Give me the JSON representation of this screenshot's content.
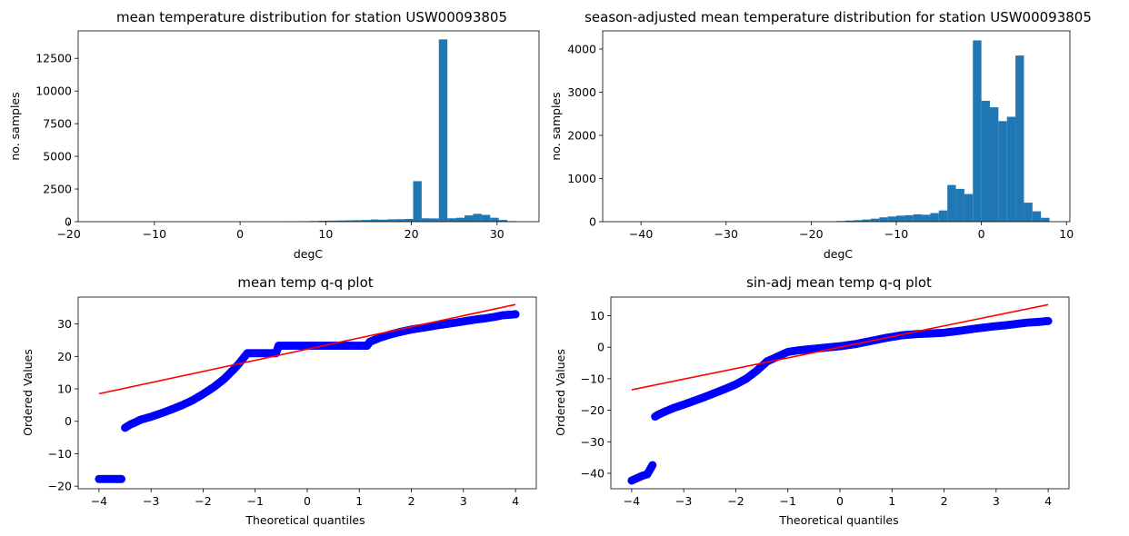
{
  "figure": {
    "background": "#ffffff"
  },
  "chart_data": [
    {
      "type": "bar",
      "subtype": "histogram",
      "title": "mean temperature distribution for station USW00093805",
      "xlabel": "degC",
      "ylabel": "no. samples",
      "xlim": [
        -18.9,
        34.9
      ],
      "ylim": [
        0,
        14600
      ],
      "xticks": [
        -20,
        -10,
        0,
        10,
        20,
        30
      ],
      "yticks": [
        0,
        2500,
        5000,
        7500,
        10000,
        12500
      ],
      "bar_color": "#1f77b4",
      "bins": [
        {
          "x0": 4.2,
          "x1": 5.2,
          "value": 10
        },
        {
          "x0": 5.2,
          "x1": 6.2,
          "value": 20
        },
        {
          "x0": 6.2,
          "x1": 7.2,
          "value": 25
        },
        {
          "x0": 7.2,
          "x1": 8.2,
          "value": 35
        },
        {
          "x0": 8.2,
          "x1": 9.2,
          "value": 50
        },
        {
          "x0": 9.2,
          "x1": 10.2,
          "value": 70
        },
        {
          "x0": 10.2,
          "x1": 11.2,
          "value": 80
        },
        {
          "x0": 11.2,
          "x1": 12.2,
          "value": 90
        },
        {
          "x0": 12.2,
          "x1": 13.2,
          "value": 100
        },
        {
          "x0": 13.2,
          "x1": 14.2,
          "value": 110
        },
        {
          "x0": 14.2,
          "x1": 15.2,
          "value": 130
        },
        {
          "x0": 15.2,
          "x1": 16.2,
          "value": 170
        },
        {
          "x0": 16.2,
          "x1": 17.2,
          "value": 150
        },
        {
          "x0": 17.2,
          "x1": 18.2,
          "value": 180
        },
        {
          "x0": 18.2,
          "x1": 19.2,
          "value": 190
        },
        {
          "x0": 19.2,
          "x1": 20.2,
          "value": 210
        },
        {
          "x0": 20.2,
          "x1": 21.2,
          "value": 3100
        },
        {
          "x0": 21.2,
          "x1": 22.2,
          "value": 260
        },
        {
          "x0": 22.2,
          "x1": 23.2,
          "value": 250
        },
        {
          "x0": 23.2,
          "x1": 24.2,
          "value": 13950
        },
        {
          "x0": 24.2,
          "x1": 25.2,
          "value": 260
        },
        {
          "x0": 25.2,
          "x1": 26.2,
          "value": 300
        },
        {
          "x0": 26.2,
          "x1": 27.2,
          "value": 480
        },
        {
          "x0": 27.2,
          "x1": 28.2,
          "value": 600
        },
        {
          "x0": 28.2,
          "x1": 29.2,
          "value": 520
        },
        {
          "x0": 29.2,
          "x1": 30.2,
          "value": 300
        },
        {
          "x0": 30.2,
          "x1": 31.2,
          "value": 130
        },
        {
          "x0": 31.2,
          "x1": 32.2,
          "value": 40
        },
        {
          "x0": 32.2,
          "x1": 33.2,
          "value": 10
        }
      ]
    },
    {
      "type": "bar",
      "subtype": "histogram",
      "title": "season-adjusted mean temperature distribution for station USW00093805",
      "xlabel": "degC",
      "ylabel": "no. samples",
      "xlim": [
        -44.5,
        10.4
      ],
      "ylim": [
        0,
        4420
      ],
      "xticks": [
        -40,
        -30,
        -20,
        -10,
        0,
        10
      ],
      "yticks": [
        0,
        1000,
        2000,
        3000,
        4000
      ],
      "bar_color": "#1f77b4",
      "bins": [
        {
          "x0": -17.0,
          "x1": -16.0,
          "value": 15
        },
        {
          "x0": -16.0,
          "x1": -15.0,
          "value": 25
        },
        {
          "x0": -15.0,
          "x1": -14.0,
          "value": 35
        },
        {
          "x0": -14.0,
          "x1": -13.0,
          "value": 50
        },
        {
          "x0": -13.0,
          "x1": -12.0,
          "value": 70
        },
        {
          "x0": -12.0,
          "x1": -11.0,
          "value": 100
        },
        {
          "x0": -11.0,
          "x1": -10.0,
          "value": 120
        },
        {
          "x0": -10.0,
          "x1": -9.0,
          "value": 140
        },
        {
          "x0": -9.0,
          "x1": -8.0,
          "value": 150
        },
        {
          "x0": -8.0,
          "x1": -7.0,
          "value": 170
        },
        {
          "x0": -7.0,
          "x1": -6.0,
          "value": 160
        },
        {
          "x0": -6.0,
          "x1": -5.0,
          "value": 200
        },
        {
          "x0": -5.0,
          "x1": -4.0,
          "value": 260
        },
        {
          "x0": -4.0,
          "x1": -3.0,
          "value": 850
        },
        {
          "x0": -3.0,
          "x1": -2.0,
          "value": 760
        },
        {
          "x0": -2.0,
          "x1": -1.0,
          "value": 640
        },
        {
          "x0": -1.0,
          "x1": 0.0,
          "value": 4200
        },
        {
          "x0": 0.0,
          "x1": 1.0,
          "value": 2800
        },
        {
          "x0": 1.0,
          "x1": 2.0,
          "value": 2650
        },
        {
          "x0": 2.0,
          "x1": 3.0,
          "value": 2330
        },
        {
          "x0": 3.0,
          "x1": 4.0,
          "value": 2430
        },
        {
          "x0": 4.0,
          "x1": 5.0,
          "value": 3850
        },
        {
          "x0": 5.0,
          "x1": 6.0,
          "value": 440
        },
        {
          "x0": 6.0,
          "x1": 7.0,
          "value": 240
        },
        {
          "x0": 7.0,
          "x1": 8.0,
          "value": 90
        }
      ]
    },
    {
      "type": "scatter",
      "subtype": "q-q plot",
      "title": "mean temp q-q plot",
      "xlabel": "Theoretical quantiles",
      "ylabel": "Ordered Values",
      "xlim": [
        -4.4,
        4.4
      ],
      "ylim": [
        -20.8,
        38.3
      ],
      "xticks": [
        -4,
        -3,
        -2,
        -1,
        0,
        1,
        2,
        3,
        4
      ],
      "yticks": [
        -20,
        -10,
        0,
        10,
        20,
        30
      ],
      "marker_color": "#0000ff",
      "line_color": "#ff0000",
      "fit_line": [
        [
          -4.0,
          8.5
        ],
        [
          4.0,
          36.0
        ]
      ],
      "points": [
        [
          -4.0,
          -17.8
        ],
        [
          -3.75,
          -17.8
        ],
        [
          -3.65,
          -17.8
        ],
        [
          -3.57,
          -17.8
        ],
        [
          -3.5,
          -2.0
        ],
        [
          -3.45,
          -1.5
        ],
        [
          -3.4,
          -1.0
        ],
        [
          -3.3,
          -0.3
        ],
        [
          -3.2,
          0.5
        ],
        [
          -3.0,
          1.4
        ],
        [
          -2.8,
          2.5
        ],
        [
          -2.6,
          3.7
        ],
        [
          -2.4,
          5.0
        ],
        [
          -2.2,
          6.5
        ],
        [
          -2.0,
          8.4
        ],
        [
          -1.8,
          10.5
        ],
        [
          -1.6,
          13.0
        ],
        [
          -1.4,
          16.2
        ],
        [
          -1.3,
          18.0
        ],
        [
          -1.2,
          20.0
        ],
        [
          -1.15,
          21.0
        ],
        [
          -0.9,
          21.0
        ],
        [
          -0.6,
          21.0
        ],
        [
          -0.55,
          23.3
        ],
        [
          0.0,
          23.3
        ],
        [
          0.5,
          23.3
        ],
        [
          1.0,
          23.3
        ],
        [
          1.15,
          23.3
        ],
        [
          1.2,
          24.5
        ],
        [
          1.4,
          25.8
        ],
        [
          1.6,
          26.8
        ],
        [
          1.8,
          27.6
        ],
        [
          2.0,
          28.3
        ],
        [
          2.2,
          28.8
        ],
        [
          2.5,
          29.6
        ],
        [
          2.8,
          30.3
        ],
        [
          3.0,
          30.8
        ],
        [
          3.2,
          31.3
        ],
        [
          3.4,
          31.7
        ],
        [
          3.6,
          32.2
        ],
        [
          3.75,
          32.7
        ],
        [
          4.0,
          33.0
        ]
      ]
    },
    {
      "type": "scatter",
      "subtype": "q-q plot",
      "title": "sin-adj mean temp q-q plot",
      "xlabel": "Theoretical quantiles",
      "ylabel": "Ordered Values",
      "xlim": [
        -4.4,
        4.4
      ],
      "ylim": [
        -44.9,
        15.9
      ],
      "xticks": [
        -4,
        -3,
        -2,
        -1,
        0,
        1,
        2,
        3,
        4
      ],
      "yticks": [
        -40,
        -30,
        -20,
        -10,
        0,
        10
      ],
      "marker_color": "#0000ff",
      "line_color": "#ff0000",
      "fit_line": [
        [
          -4.0,
          -13.5
        ],
        [
          4.0,
          13.5
        ]
      ],
      "points": [
        [
          -4.0,
          -42.3
        ],
        [
          -3.8,
          -40.8
        ],
        [
          -3.7,
          -40.3
        ],
        [
          -3.6,
          -37.4
        ],
        [
          -3.55,
          -22.0
        ],
        [
          -3.5,
          -21.5
        ],
        [
          -3.4,
          -20.7
        ],
        [
          -3.3,
          -20.0
        ],
        [
          -3.2,
          -19.3
        ],
        [
          -3.0,
          -18.2
        ],
        [
          -2.8,
          -17.0
        ],
        [
          -2.6,
          -15.8
        ],
        [
          -2.4,
          -14.5
        ],
        [
          -2.2,
          -13.2
        ],
        [
          -2.0,
          -11.8
        ],
        [
          -1.8,
          -10.0
        ],
        [
          -1.6,
          -7.5
        ],
        [
          -1.4,
          -4.5
        ],
        [
          -1.2,
          -3.0
        ],
        [
          -1.0,
          -1.5
        ],
        [
          -0.8,
          -1.0
        ],
        [
          -0.5,
          -0.5
        ],
        [
          -0.2,
          0.0
        ],
        [
          0.0,
          0.3
        ],
        [
          0.3,
          1.0
        ],
        [
          0.6,
          2.0
        ],
        [
          0.9,
          3.0
        ],
        [
          1.2,
          3.8
        ],
        [
          1.5,
          4.2
        ],
        [
          1.8,
          4.4
        ],
        [
          2.0,
          4.6
        ],
        [
          2.3,
          5.2
        ],
        [
          2.6,
          5.9
        ],
        [
          2.9,
          6.5
        ],
        [
          3.2,
          7.0
        ],
        [
          3.4,
          7.4
        ],
        [
          3.6,
          7.8
        ],
        [
          3.8,
          8.0
        ],
        [
          4.0,
          8.3
        ]
      ]
    }
  ]
}
